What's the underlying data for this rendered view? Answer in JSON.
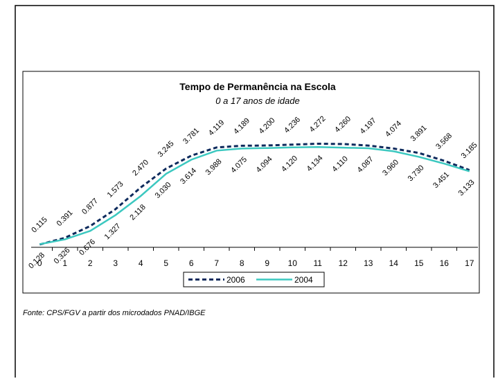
{
  "chart_data": {
    "type": "line",
    "title": "Tempo de Permanência na Escola",
    "subtitle": "0 a 17 anos de idade",
    "source": "Fonte: CPS/FGV a partir dos microdados PNAD/IBGE",
    "categories": [
      "0",
      "1",
      "2",
      "3",
      "4",
      "5",
      "6",
      "7",
      "8",
      "9",
      "10",
      "11",
      "12",
      "13",
      "14",
      "15",
      "16",
      "17"
    ],
    "ylim": [
      0,
      5
    ],
    "legend": "bottom",
    "series": [
      {
        "name": "2006",
        "color": "#0d2a5c",
        "dashed": true,
        "label_side": "above",
        "values": [
          0.115,
          0.391,
          0.877,
          1.573,
          2.47,
          3.245,
          3.781,
          4.119,
          4.189,
          4.2,
          4.236,
          4.272,
          4.26,
          4.197,
          4.074,
          3.891,
          3.568,
          3.185
        ],
        "value_labels": [
          "0.115",
          "0.391",
          "0.877",
          "1.573",
          "2.470",
          "3.245",
          "3.781",
          "4.119",
          "4.189",
          "4.200",
          "4.236",
          "4.272",
          "4.260",
          "4.197",
          "4.074",
          "3.891",
          "3.568",
          "3.185"
        ]
      },
      {
        "name": "2004",
        "color": "#3cc8c0",
        "dashed": false,
        "label_side": "below",
        "values": [
          0.128,
          0.326,
          0.676,
          1.327,
          2.118,
          3.03,
          3.614,
          3.988,
          4.075,
          4.094,
          4.12,
          4.134,
          4.11,
          4.087,
          3.96,
          3.73,
          3.451,
          3.133
        ],
        "value_labels": [
          "0.128",
          "0.326",
          "0.676",
          "1.327",
          "2.118",
          "3.030",
          "3.614",
          "3.988",
          "4.075",
          "4.094",
          "4.120",
          "4.134",
          "4.110",
          "4.087",
          "3.960",
          "3.730",
          "3.451",
          "3.133"
        ]
      }
    ]
  }
}
